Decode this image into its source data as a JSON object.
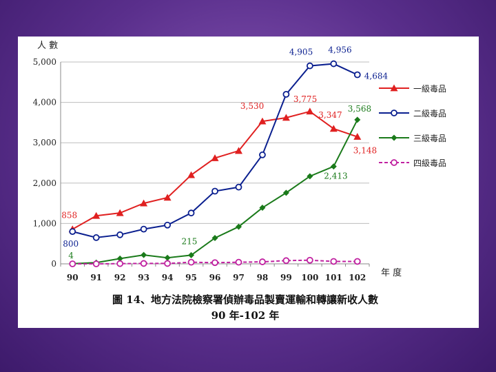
{
  "chart_data": {
    "type": "line",
    "ylabel": "人 數",
    "xlabel": "年 度",
    "caption_line1": "圖 14、地方法院檢察署偵辦毒品製賣運輸和轉讓新收人數",
    "caption_line2": "90 年-102 年",
    "ylim": [
      0,
      5000
    ],
    "yticks": [
      "0",
      "1,000",
      "2,000",
      "3,000",
      "4,000",
      "5,000"
    ],
    "ytick_values": [
      0,
      1000,
      2000,
      3000,
      4000,
      5000
    ],
    "categories": [
      "90",
      "91",
      "92",
      "93",
      "94",
      "95",
      "96",
      "97",
      "98",
      "99",
      "100",
      "101",
      "102"
    ],
    "grid": "horizontal",
    "legend_position": "right",
    "series": [
      {
        "name": "一級毒品",
        "color": "#e02020",
        "marker": "triangle",
        "dash": false,
        "values": [
          858,
          1190,
          1260,
          1500,
          1640,
          2200,
          2620,
          2800,
          3530,
          3620,
          3775,
          3347,
          3148
        ]
      },
      {
        "name": "二級毒品",
        "color": "#0a1f8f",
        "marker": "circle-open",
        "dash": false,
        "values": [
          800,
          650,
          720,
          860,
          960,
          1260,
          1800,
          1900,
          2700,
          4200,
          4905,
          4956,
          4684
        ]
      },
      {
        "name": "三級毒品",
        "color": "#1a7a1a",
        "marker": "diamond",
        "dash": false,
        "values": [
          4,
          30,
          130,
          220,
          150,
          215,
          640,
          920,
          1390,
          1760,
          2170,
          2413,
          3568
        ]
      },
      {
        "name": "四級毒品",
        "color": "#c020a0",
        "marker": "circle-open",
        "dash": true,
        "values": [
          0,
          0,
          5,
          10,
          10,
          40,
          30,
          40,
          50,
          80,
          90,
          60,
          60
        ]
      }
    ],
    "annotations": [
      {
        "text": "858",
        "series": 0,
        "index": 0,
        "color": "#e02020",
        "dx": -16,
        "dy": -16
      },
      {
        "text": "3,530",
        "series": 0,
        "index": 8,
        "color": "#e02020",
        "dx": -32,
        "dy": -18
      },
      {
        "text": "3,775",
        "series": 0,
        "index": 10,
        "color": "#e02020",
        "dx": -24,
        "dy": -14
      },
      {
        "text": "3,347",
        "series": 0,
        "index": 11,
        "color": "#e02020",
        "dx": -22,
        "dy": -16
      },
      {
        "text": "3,148",
        "series": 0,
        "index": 12,
        "color": "#e02020",
        "dx": -6,
        "dy": 24
      },
      {
        "text": "800",
        "series": 1,
        "index": 0,
        "color": "#0a1f8f",
        "dx": -14,
        "dy": 22
      },
      {
        "text": "4,905",
        "series": 1,
        "index": 10,
        "color": "#0a1f8f",
        "dx": -30,
        "dy": -16
      },
      {
        "text": "4,956",
        "series": 1,
        "index": 11,
        "color": "#0a1f8f",
        "dx": -8,
        "dy": -16
      },
      {
        "text": "4,684",
        "series": 1,
        "index": 12,
        "color": "#0a1f8f",
        "dx": 10,
        "dy": 6
      },
      {
        "text": "4",
        "series": 2,
        "index": 0,
        "color": "#1a7a1a",
        "dx": -6,
        "dy": -8
      },
      {
        "text": "215",
        "series": 2,
        "index": 5,
        "color": "#1a7a1a",
        "dx": -14,
        "dy": -16
      },
      {
        "text": "2,413",
        "series": 2,
        "index": 11,
        "color": "#1a7a1a",
        "dx": -14,
        "dy": 18
      },
      {
        "text": "3,568",
        "series": 2,
        "index": 12,
        "color": "#1a7a1a",
        "dx": -14,
        "dy": -12
      }
    ]
  }
}
